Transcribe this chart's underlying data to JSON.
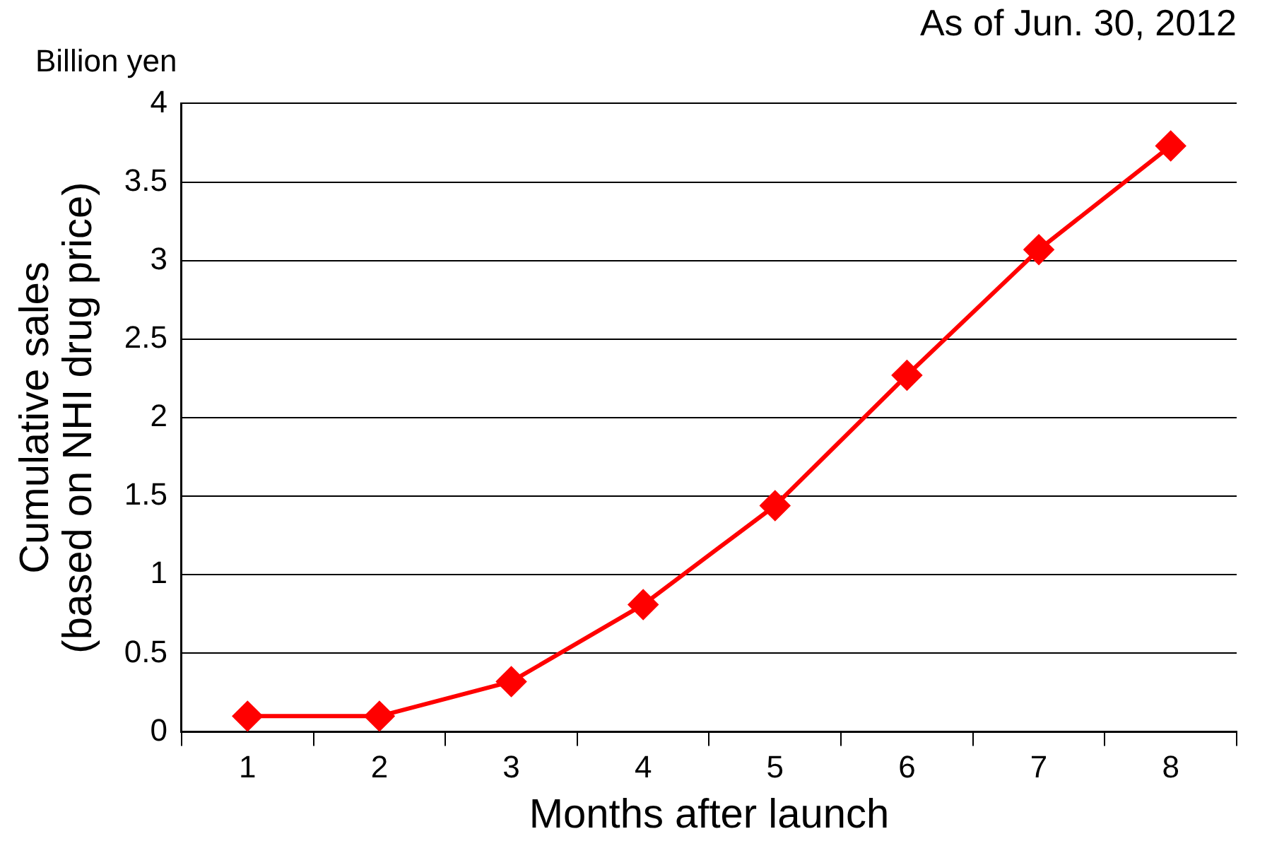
{
  "chart_data": {
    "type": "line",
    "title": "As of Jun. 30, 2012",
    "xlabel": "Months after launch",
    "ylabel": "Cumulative sales\n(based on NHI drug price)",
    "annotations": [
      "Billion yen"
    ],
    "categories": [
      "1",
      "2",
      "3",
      "4",
      "5",
      "6",
      "7",
      "8"
    ],
    "series": [
      {
        "color": "#ff0000",
        "values": [
          0.1,
          0.1,
          0.32,
          0.81,
          1.44,
          2.27,
          3.07,
          3.73
        ]
      }
    ],
    "ylim": [
      0,
      4
    ],
    "yticks": [
      0,
      0.5,
      1,
      1.5,
      2,
      2.5,
      3,
      3.5,
      4
    ],
    "grid": "y",
    "legend": false,
    "marker": "diamond",
    "line_style": "solid"
  }
}
